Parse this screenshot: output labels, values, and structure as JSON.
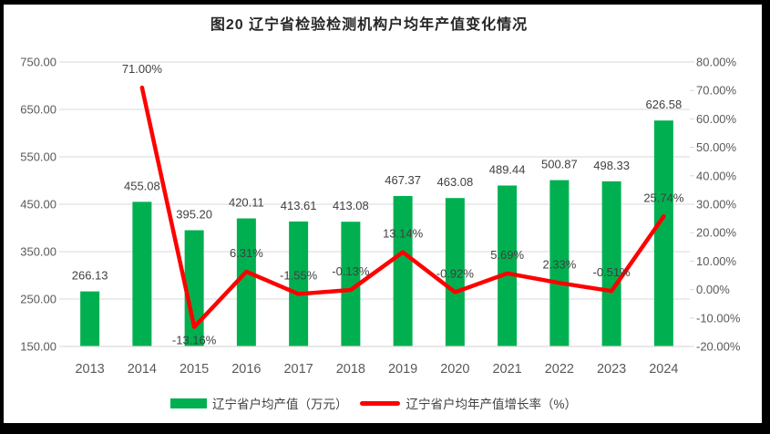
{
  "title": "图20 辽宁省检验检测机构户均年产值变化情况",
  "chart_data": {
    "type": "combo (bar + line)",
    "title": "图20 辽宁省检验检测机构户均年产值变化情况",
    "categories": [
      "2013",
      "2014",
      "2015",
      "2016",
      "2017",
      "2018",
      "2019",
      "2020",
      "2021",
      "2022",
      "2023",
      "2024"
    ],
    "series": [
      {
        "name": "辽宁省户均产值（万元）",
        "type": "bar",
        "axis": "left",
        "color": "#00B050",
        "values": [
          266.13,
          455.08,
          395.2,
          420.11,
          413.61,
          413.08,
          467.37,
          463.08,
          489.44,
          500.87,
          498.33,
          626.58
        ],
        "labels": [
          "266.13",
          "455.08",
          "395.20",
          "420.11",
          "413.61",
          "413.08",
          "467.37",
          "463.08",
          "489.44",
          "500.87",
          "498.33",
          "626.58"
        ]
      },
      {
        "name": "辽宁省户均年产值增长率（%）",
        "type": "line",
        "axis": "right",
        "color": "#FF0000",
        "values": [
          null,
          71.0,
          -13.16,
          6.31,
          -1.55,
          -0.13,
          13.14,
          -0.92,
          5.69,
          2.33,
          -0.51,
          25.74
        ],
        "labels": [
          null,
          "71.00%",
          "-13.16%",
          "6.31%",
          "-1.55%",
          "-0.13%",
          "13.14%",
          "-0.92%",
          "5.69%",
          "2.33%",
          "-0.51%",
          "25.74%"
        ],
        "label_positions": [
          null,
          "above",
          "below",
          "above",
          "above",
          "above",
          "above",
          "above",
          "above",
          "above",
          "above",
          "above"
        ]
      }
    ],
    "left_axis": {
      "min": 150,
      "max": 750,
      "step": 100,
      "values": [
        750,
        650,
        550,
        450,
        350,
        250,
        150
      ],
      "labels": [
        "750.00",
        "650.00",
        "550.00",
        "450.00",
        "350.00",
        "250.00",
        "150.00"
      ]
    },
    "right_axis": {
      "min": -20,
      "max": 80,
      "step": 10,
      "values": [
        80,
        70,
        60,
        50,
        40,
        30,
        20,
        10,
        0,
        -10,
        -20
      ],
      "labels": [
        "80.00%",
        "70.00%",
        "60.00%",
        "50.00%",
        "40.00%",
        "30.00%",
        "20.00%",
        "10.00%",
        "0.00%",
        "-10.00%",
        "-20.00%"
      ]
    },
    "grid": true,
    "legend_position": "bottom"
  },
  "legend": {
    "items": [
      {
        "label": "辽宁省户均产值（万元）",
        "swatch": "bar",
        "color": "#00B050"
      },
      {
        "label": "辽宁省户均年产值增长率（%）",
        "swatch": "line",
        "color": "#FF0000"
      }
    ]
  },
  "colors": {
    "bar": "#00B050",
    "line": "#FF0000",
    "grid": "#D9D9D9",
    "axis_text": "#595959",
    "data_label": "#404040",
    "title_text": "#262626",
    "frame": "#000000",
    "background": "#FFFFFF"
  }
}
